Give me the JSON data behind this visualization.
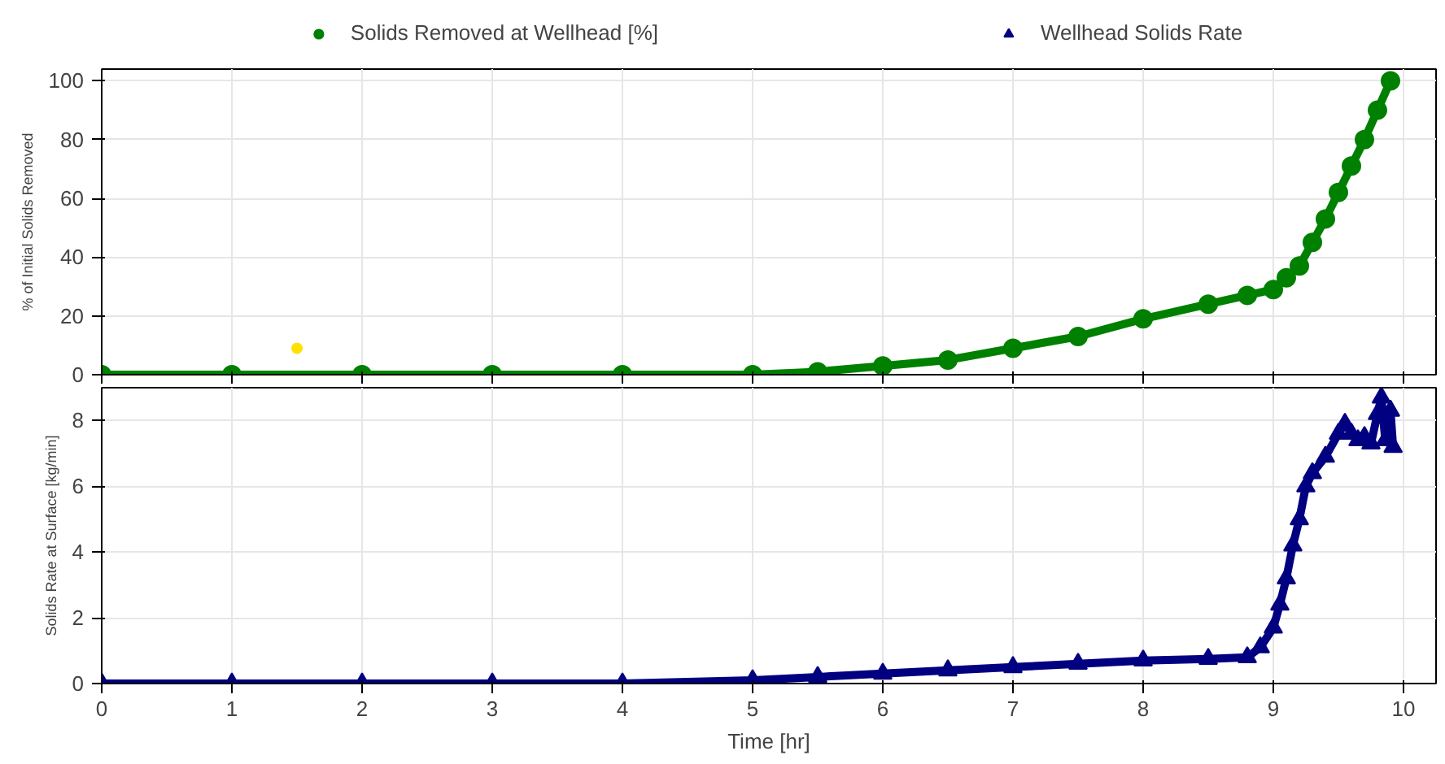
{
  "chart_data": [
    {
      "type": "line",
      "ylabel": "% of Initial Solids Removed",
      "xlim": [
        0,
        10.25
      ],
      "xticks": [
        0,
        1,
        2,
        3,
        4,
        5,
        6,
        7,
        8,
        9,
        10
      ],
      "ylim": [
        0,
        104
      ],
      "yticks": [
        0,
        20,
        40,
        60,
        80,
        100
      ],
      "tick_labels": "y",
      "grid": true,
      "legend": "top",
      "marker": "circle",
      "series": [
        {
          "name": "Solids Removed at Wellhead [%]",
          "color": "#008000",
          "x": [
            0,
            1,
            2,
            3,
            4,
            5,
            5.5,
            6,
            6.5,
            7,
            7.5,
            8,
            8.5,
            8.8,
            9,
            9.1,
            9.2,
            9.3,
            9.4,
            9.5,
            9.6,
            9.7,
            9.8,
            9.9
          ],
          "values": [
            0,
            0,
            0,
            0,
            0,
            0,
            1,
            3,
            5,
            9,
            13,
            19,
            24,
            27,
            29,
            33,
            37,
            45,
            53,
            62,
            71,
            80,
            90,
            100
          ]
        },
        {
          "type": "scatter",
          "color": "#ffe000",
          "x": [
            1.5
          ],
          "values": [
            9
          ]
        }
      ]
    },
    {
      "type": "line",
      "ylabel": "Solids Rate at Surface [kg/min]",
      "xlabel": "Time [hr]",
      "xlim": [
        0,
        10.25
      ],
      "xticks": [
        0,
        1,
        2,
        3,
        4,
        5,
        6,
        7,
        8,
        9,
        10
      ],
      "ylim": [
        0,
        9
      ],
      "yticks": [
        0,
        2,
        4,
        6,
        8
      ],
      "grid": true,
      "legend": "top",
      "marker": "triangle",
      "series": [
        {
          "name": "Wellhead Solids Rate",
          "color": "#000080",
          "x": [
            0,
            1,
            2,
            3,
            4,
            5,
            5.5,
            6,
            6.5,
            7,
            7.5,
            8,
            8.5,
            8.8,
            8.9,
            9,
            9.05,
            9.1,
            9.15,
            9.2,
            9.25,
            9.3,
            9.4,
            9.5,
            9.55,
            9.6,
            9.65,
            9.7,
            9.75,
            9.8,
            9.83,
            9.86,
            9.9,
            9.92
          ],
          "values": [
            0,
            0,
            0,
            0,
            0,
            0.1,
            0.2,
            0.3,
            0.4,
            0.5,
            0.6,
            0.7,
            0.75,
            0.8,
            1.1,
            1.7,
            2.4,
            3.2,
            4.2,
            5.0,
            6.0,
            6.4,
            6.9,
            7.6,
            7.9,
            7.6,
            7.4,
            7.5,
            7.3,
            8.2,
            8.7,
            7.4,
            8.3,
            7.2
          ]
        }
      ]
    }
  ]
}
